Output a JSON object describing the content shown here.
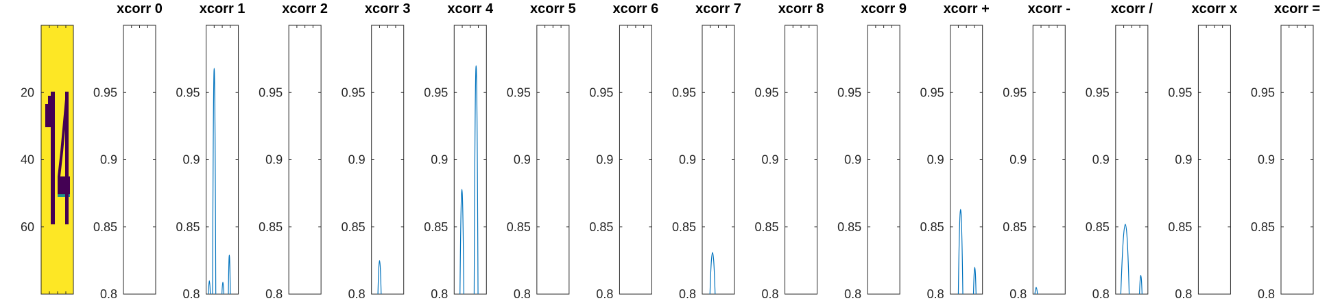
{
  "image_panel": {
    "title": "",
    "yticks": [
      20,
      40,
      60
    ],
    "ylim": [
      0,
      80
    ],
    "colors": {
      "background": "#fde725",
      "digit": "#440154",
      "edge": "#21918c"
    }
  },
  "chart_data": [
    {
      "type": "line",
      "title": "xcorr 0",
      "ylim": [
        0.8,
        1.0
      ],
      "yticks": [
        "0.8",
        "0.85",
        "0.9",
        "0.95"
      ],
      "color": "#0072bd",
      "series": []
    },
    {
      "type": "line",
      "title": "xcorr 1",
      "ylim": [
        0.8,
        1.0
      ],
      "yticks": [
        "0.8",
        "0.85",
        "0.9",
        "0.95"
      ],
      "color": "#0072bd",
      "series": [
        {
          "values": [
            [
              0.07,
              0.8
            ],
            [
              0.1,
              0.81
            ],
            [
              0.13,
              0.8
            ]
          ]
        },
        {
          "values": [
            [
              0.2,
              0.8
            ],
            [
              0.25,
              0.968
            ],
            [
              0.3,
              0.8
            ]
          ]
        },
        {
          "values": [
            [
              0.49,
              0.8
            ],
            [
              0.52,
              0.809
            ],
            [
              0.55,
              0.8
            ]
          ]
        },
        {
          "values": [
            [
              0.69,
              0.8
            ],
            [
              0.72,
              0.829
            ],
            [
              0.75,
              0.8
            ]
          ]
        }
      ]
    },
    {
      "type": "line",
      "title": "xcorr 2",
      "ylim": [
        0.8,
        1.0
      ],
      "yticks": [
        "0.8",
        "0.85",
        "0.9",
        "0.95"
      ],
      "color": "#0072bd",
      "series": []
    },
    {
      "type": "line",
      "title": "xcorr 3",
      "ylim": [
        0.8,
        1.0
      ],
      "yticks": [
        "0.8",
        "0.85",
        "0.9",
        "0.95"
      ],
      "color": "#0072bd",
      "series": [
        {
          "values": [
            [
              0.2,
              0.8
            ],
            [
              0.25,
              0.825
            ],
            [
              0.3,
              0.8
            ]
          ]
        }
      ]
    },
    {
      "type": "line",
      "title": "xcorr 4",
      "ylim": [
        0.8,
        1.0
      ],
      "yticks": [
        "0.8",
        "0.85",
        "0.9",
        "0.95"
      ],
      "color": "#0072bd",
      "series": [
        {
          "values": [
            [
              0.18,
              0.8
            ],
            [
              0.24,
              0.878
            ],
            [
              0.3,
              0.8
            ]
          ]
        },
        {
          "values": [
            [
              0.62,
              0.8
            ],
            [
              0.68,
              0.97
            ],
            [
              0.74,
              0.8
            ]
          ]
        }
      ]
    },
    {
      "type": "line",
      "title": "xcorr 5",
      "ylim": [
        0.8,
        1.0
      ],
      "yticks": [
        "0.8",
        "0.85",
        "0.9",
        "0.95"
      ],
      "color": "#0072bd",
      "series": []
    },
    {
      "type": "line",
      "title": "xcorr 6",
      "ylim": [
        0.8,
        1.0
      ],
      "yticks": [
        "0.8",
        "0.85",
        "0.9",
        "0.95"
      ],
      "color": "#0072bd",
      "series": []
    },
    {
      "type": "line",
      "title": "xcorr 7",
      "ylim": [
        0.8,
        1.0
      ],
      "yticks": [
        "0.8",
        "0.85",
        "0.9",
        "0.95"
      ],
      "color": "#0072bd",
      "series": [
        {
          "values": [
            [
              0.24,
              0.8
            ],
            [
              0.32,
              0.831
            ],
            [
              0.4,
              0.8
            ]
          ]
        }
      ]
    },
    {
      "type": "line",
      "title": "xcorr 8",
      "ylim": [
        0.8,
        1.0
      ],
      "yticks": [
        "0.8",
        "0.85",
        "0.9",
        "0.95"
      ],
      "color": "#0072bd",
      "series": []
    },
    {
      "type": "line",
      "title": "xcorr 9",
      "ylim": [
        0.8,
        1.0
      ],
      "yticks": [
        "0.8",
        "0.85",
        "0.9",
        "0.95"
      ],
      "color": "#0072bd",
      "series": []
    },
    {
      "type": "line",
      "title": "xcorr +",
      "ylim": [
        0.8,
        1.0
      ],
      "yticks": [
        "0.8",
        "0.85",
        "0.9",
        "0.95"
      ],
      "color": "#0072bd",
      "series": [
        {
          "values": [
            [
              0.25,
              0.8
            ],
            [
              0.32,
              0.863
            ],
            [
              0.39,
              0.8
            ]
          ]
        },
        {
          "values": [
            [
              0.72,
              0.8
            ],
            [
              0.76,
              0.82
            ],
            [
              0.8,
              0.8
            ]
          ]
        }
      ]
    },
    {
      "type": "line",
      "title": "xcorr -",
      "ylim": [
        0.8,
        1.0
      ],
      "yticks": [
        "0.8",
        "0.85",
        "0.9",
        "0.95"
      ],
      "color": "#0072bd",
      "series": [
        {
          "values": [
            [
              0.06,
              0.8
            ],
            [
              0.1,
              0.805
            ],
            [
              0.14,
              0.8
            ]
          ]
        }
      ]
    },
    {
      "type": "line",
      "title": "xcorr /",
      "ylim": [
        0.8,
        1.0
      ],
      "yticks": [
        "0.8",
        "0.85",
        "0.9",
        "0.95"
      ],
      "color": "#0072bd",
      "series": [
        {
          "values": [
            [
              0.16,
              0.8
            ],
            [
              0.3,
              0.852
            ],
            [
              0.42,
              0.8
            ]
          ]
        },
        {
          "values": [
            [
              0.74,
              0.8
            ],
            [
              0.78,
              0.814
            ],
            [
              0.82,
              0.8
            ]
          ]
        }
      ]
    },
    {
      "type": "line",
      "title": "xcorr x",
      "ylim": [
        0.8,
        1.0
      ],
      "yticks": [
        "0.8",
        "0.85",
        "0.9",
        "0.95"
      ],
      "color": "#0072bd",
      "series": []
    },
    {
      "type": "line",
      "title": "xcorr =",
      "ylim": [
        0.8,
        1.0
      ],
      "yticks": [
        "0.8",
        "0.85",
        "0.9",
        "0.95"
      ],
      "color": "#0072bd",
      "series": []
    }
  ]
}
